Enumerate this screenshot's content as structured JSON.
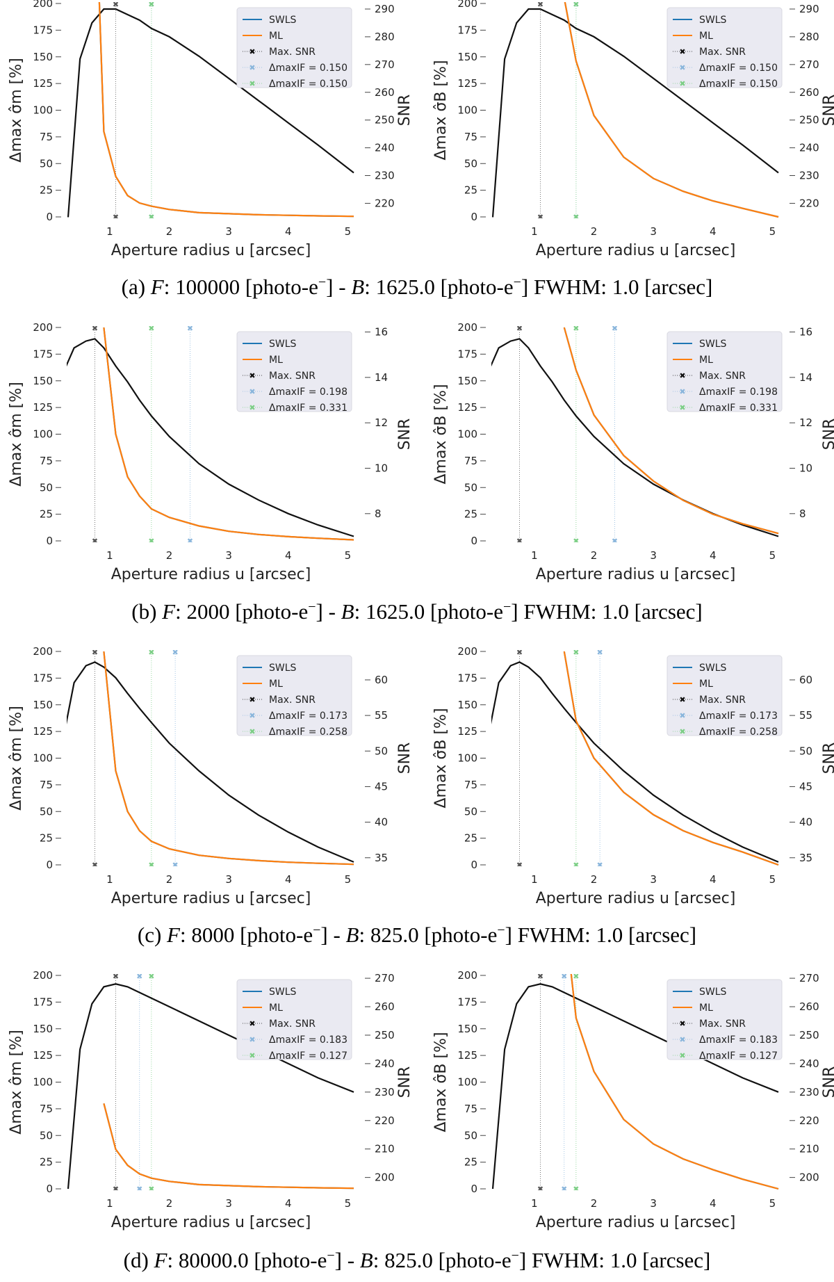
{
  "colors": {
    "swls": "#1f77b4",
    "ml": "#ff7f0e",
    "snr": "#111111",
    "legend_bg": "#eaeaf2",
    "marker_blue": "#8ab6dc",
    "marker_green": "#7dcf86"
  },
  "shared": {
    "xlabel": "Aperture radius u [arcsec]",
    "ylabel_left_a": "Δmax σ̂m [%]",
    "ylabel_left_b": "Δmax σ̂B [%]",
    "ylabel_right": "SNR",
    "x_ticks": [
      1,
      2,
      3,
      4,
      5
    ],
    "y_ticks": [
      0,
      25,
      50,
      75,
      100,
      125,
      150,
      175,
      200
    ],
    "legend_labels": {
      "swls": "SWLS",
      "ml": "ML",
      "max_snr": "Max. SNR",
      "delta_prefix": "ΔmaxIF = "
    }
  },
  "captions": [
    {
      "label": "(a)",
      "F": "100000",
      "B": "1625.0",
      "fwhm": "1.0"
    },
    {
      "label": "(b)",
      "F": "2000",
      "B": "1625.0",
      "fwhm": "1.0"
    },
    {
      "label": "(c)",
      "F": "8000",
      "B": "825.0",
      "fwhm": "1.0"
    },
    {
      "label": "(d)",
      "F": "80000.0",
      "B": "825.0",
      "fwhm": "1.0"
    }
  ],
  "chart_data": [
    {
      "type": "line",
      "row": "a",
      "panel": "left",
      "x": [
        0.3,
        0.5,
        0.7,
        0.9,
        1.1,
        1.3,
        1.5,
        1.7,
        2.0,
        2.5,
        3.0,
        3.5,
        4.0,
        4.5,
        5.1
      ],
      "ml": [
        null,
        null,
        400,
        80,
        38,
        20,
        13,
        10,
        7,
        4,
        3,
        2,
        1.5,
        1,
        0.5
      ],
      "snr": [
        215,
        272,
        285,
        290,
        290,
        288,
        286,
        283,
        280,
        273,
        265,
        257,
        249,
        241,
        231
      ],
      "ylim": [
        0,
        200
      ],
      "snr_lim": [
        215.1,
        292
      ],
      "snr_ticks": [
        220,
        230,
        240,
        250,
        260,
        270,
        280,
        290
      ],
      "max_snr_x": 1.1,
      "blue_x": 1.7,
      "green_x": 1.7,
      "blue_value": "0.150",
      "green_value": "0.150"
    },
    {
      "type": "line",
      "row": "a",
      "panel": "right",
      "x": [
        0.3,
        0.5,
        0.7,
        0.9,
        1.1,
        1.3,
        1.5,
        1.7,
        2.0,
        2.5,
        3.0,
        3.5,
        4.0,
        4.5,
        5.1
      ],
      "ml": [
        null,
        null,
        null,
        null,
        null,
        400,
        205,
        146,
        95,
        56,
        36,
        24,
        15,
        8,
        0
      ],
      "snr": [
        215,
        272,
        285,
        290,
        290,
        288,
        286,
        283,
        280,
        273,
        265,
        257,
        249,
        241,
        231
      ],
      "ylim": [
        0,
        200
      ],
      "snr_lim": [
        215.1,
        292
      ],
      "snr_ticks": [
        220,
        230,
        240,
        250,
        260,
        270,
        280,
        290
      ],
      "max_snr_x": 1.1,
      "blue_x": 1.7,
      "green_x": 1.7,
      "blue_value": "0.150",
      "green_value": "0.150"
    },
    {
      "type": "line",
      "row": "b",
      "panel": "right_axis_shared",
      "panel_name": "left",
      "x": [
        0.2,
        0.4,
        0.6,
        0.75,
        0.9,
        1.1,
        1.3,
        1.5,
        1.7,
        2.0,
        2.5,
        3.0,
        3.5,
        4.0,
        4.5,
        5.1
      ],
      "ml": [
        null,
        null,
        null,
        null,
        200,
        100,
        60,
        42,
        30,
        22,
        14,
        9,
        6,
        4,
        2.5,
        1
      ],
      "snr": [
        14.1,
        15.3,
        15.6,
        15.7,
        15.3,
        14.5,
        13.8,
        13.0,
        12.3,
        11.4,
        10.2,
        9.3,
        8.6,
        8.0,
        7.5,
        7.0
      ],
      "ylim": [
        0,
        200
      ],
      "snr_lim": [
        6.8,
        16.2
      ],
      "snr_ticks": [
        8,
        10,
        12,
        14,
        16
      ],
      "max_snr_x": 0.75,
      "blue_x": 2.35,
      "green_x": 1.7,
      "blue_value": "0.198",
      "green_value": "0.331"
    },
    {
      "type": "line",
      "row": "b",
      "panel": "right",
      "x": [
        0.2,
        0.4,
        0.6,
        0.75,
        0.9,
        1.1,
        1.3,
        1.5,
        1.7,
        2.0,
        2.5,
        3.0,
        3.5,
        4.0,
        4.5,
        5.1
      ],
      "ml": [
        null,
        null,
        null,
        null,
        null,
        null,
        null,
        200,
        160,
        118,
        80,
        56,
        38,
        25,
        16,
        7
      ],
      "snr": [
        14.1,
        15.3,
        15.6,
        15.7,
        15.3,
        14.5,
        13.8,
        13.0,
        12.3,
        11.4,
        10.2,
        9.3,
        8.6,
        8.0,
        7.5,
        7.0
      ],
      "ylim": [
        0,
        200
      ],
      "snr_lim": [
        6.8,
        16.2
      ],
      "snr_ticks": [
        8,
        10,
        12,
        14,
        16
      ],
      "max_snr_x": 0.75,
      "blue_x": 2.35,
      "green_x": 1.7,
      "blue_value": "0.198",
      "green_value": "0.331"
    },
    {
      "type": "line",
      "row": "c",
      "panel": "left",
      "x": [
        0.2,
        0.4,
        0.6,
        0.75,
        0.9,
        1.1,
        1.3,
        1.5,
        1.7,
        2.0,
        2.5,
        3.0,
        3.5,
        4.0,
        4.5,
        5.1
      ],
      "ml": [
        null,
        null,
        null,
        null,
        200,
        88,
        50,
        32,
        22,
        15,
        9,
        6,
        4,
        2.5,
        1.5,
        0.5
      ],
      "snr": [
        51.0,
        59.6,
        62.0,
        62.5,
        61.8,
        60.3,
        58.1,
        56.0,
        54.0,
        51.1,
        47.2,
        43.8,
        41.0,
        38.6,
        36.5,
        34.4
      ],
      "ylim": [
        0,
        200
      ],
      "snr_lim": [
        34,
        64
      ],
      "snr_ticks": [
        35,
        40,
        45,
        50,
        55,
        60
      ],
      "max_snr_x": 0.75,
      "blue_x": 2.1,
      "green_x": 1.7,
      "blue_value": "0.173",
      "green_value": "0.258"
    },
    {
      "type": "line",
      "row": "c",
      "panel": "right",
      "x": [
        0.2,
        0.4,
        0.6,
        0.75,
        0.9,
        1.1,
        1.3,
        1.5,
        1.7,
        2.0,
        2.5,
        3.0,
        3.5,
        4.0,
        4.5,
        5.1
      ],
      "ml": [
        null,
        null,
        null,
        null,
        null,
        null,
        null,
        200,
        135,
        100,
        68,
        47,
        32,
        21,
        12,
        0
      ],
      "snr": [
        51.0,
        59.6,
        62.0,
        62.5,
        61.8,
        60.3,
        58.1,
        56.0,
        54.0,
        51.1,
        47.2,
        43.8,
        41.0,
        38.6,
        36.5,
        34.4
      ],
      "ylim": [
        0,
        200
      ],
      "snr_lim": [
        34,
        64
      ],
      "snr_ticks": [
        35,
        40,
        45,
        50,
        55,
        60
      ],
      "max_snr_x": 0.75,
      "blue_x": 2.1,
      "green_x": 1.7,
      "blue_value": "0.173",
      "green_value": "0.258"
    },
    {
      "type": "line",
      "row": "d",
      "panel": "left",
      "x": [
        0.3,
        0.5,
        0.7,
        0.9,
        1.1,
        1.3,
        1.5,
        1.7,
        2.0,
        2.5,
        3.0,
        3.5,
        4.0,
        4.5,
        5.1
      ],
      "ml": [
        null,
        null,
        null,
        80,
        37,
        22,
        14,
        10,
        7,
        4,
        3,
        2,
        1.5,
        1,
        0.5
      ],
      "snr": [
        196,
        245,
        261,
        267,
        268,
        267,
        265,
        263,
        260,
        255,
        250,
        245,
        240,
        235,
        230
      ],
      "ylim": [
        0,
        200
      ],
      "snr_lim": [
        196,
        271
      ],
      "snr_ticks": [
        200,
        210,
        220,
        230,
        240,
        250,
        260,
        270
      ],
      "max_snr_x": 1.1,
      "blue_x": 1.5,
      "green_x": 1.7,
      "blue_value": "0.183",
      "green_value": "0.127"
    },
    {
      "type": "line",
      "row": "d",
      "panel": "right",
      "x": [
        0.3,
        0.5,
        0.7,
        0.9,
        1.1,
        1.3,
        1.5,
        1.7,
        2.0,
        2.5,
        3.0,
        3.5,
        4.0,
        4.5,
        5.1
      ],
      "ml": [
        null,
        null,
        null,
        null,
        null,
        null,
        260,
        160,
        110,
        65,
        42,
        28,
        18,
        9,
        0
      ],
      "snr": [
        196,
        245,
        261,
        267,
        268,
        267,
        265,
        263,
        260,
        255,
        250,
        245,
        240,
        235,
        230
      ],
      "ylim": [
        0,
        200
      ],
      "snr_lim": [
        196,
        271
      ],
      "snr_ticks": [
        200,
        210,
        220,
        230,
        240,
        250,
        260,
        270
      ],
      "max_snr_x": 1.1,
      "blue_x": 1.5,
      "green_x": 1.7,
      "blue_value": "0.183",
      "green_value": "0.127"
    }
  ]
}
